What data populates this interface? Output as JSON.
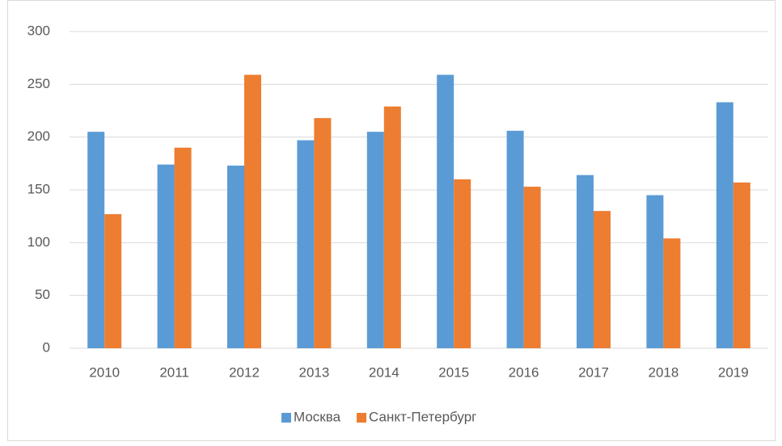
{
  "chart_data": {
    "type": "bar",
    "categories": [
      "2010",
      "2011",
      "2012",
      "2013",
      "2014",
      "2015",
      "2016",
      "2017",
      "2018",
      "2019"
    ],
    "series": [
      {
        "name": "Москва",
        "color": "#5b9bd5",
        "values": [
          205,
          174,
          173,
          197,
          205,
          259,
          206,
          164,
          145,
          233
        ]
      },
      {
        "name": "Санкт-Петербург",
        "color": "#ed7d31",
        "values": [
          127,
          190,
          259,
          218,
          229,
          160,
          153,
          130,
          104,
          157
        ]
      }
    ],
    "ylim": [
      0,
      300
    ],
    "yticks": [
      0,
      50,
      100,
      150,
      200,
      250,
      300
    ],
    "grid": true,
    "legend": "bottom"
  }
}
